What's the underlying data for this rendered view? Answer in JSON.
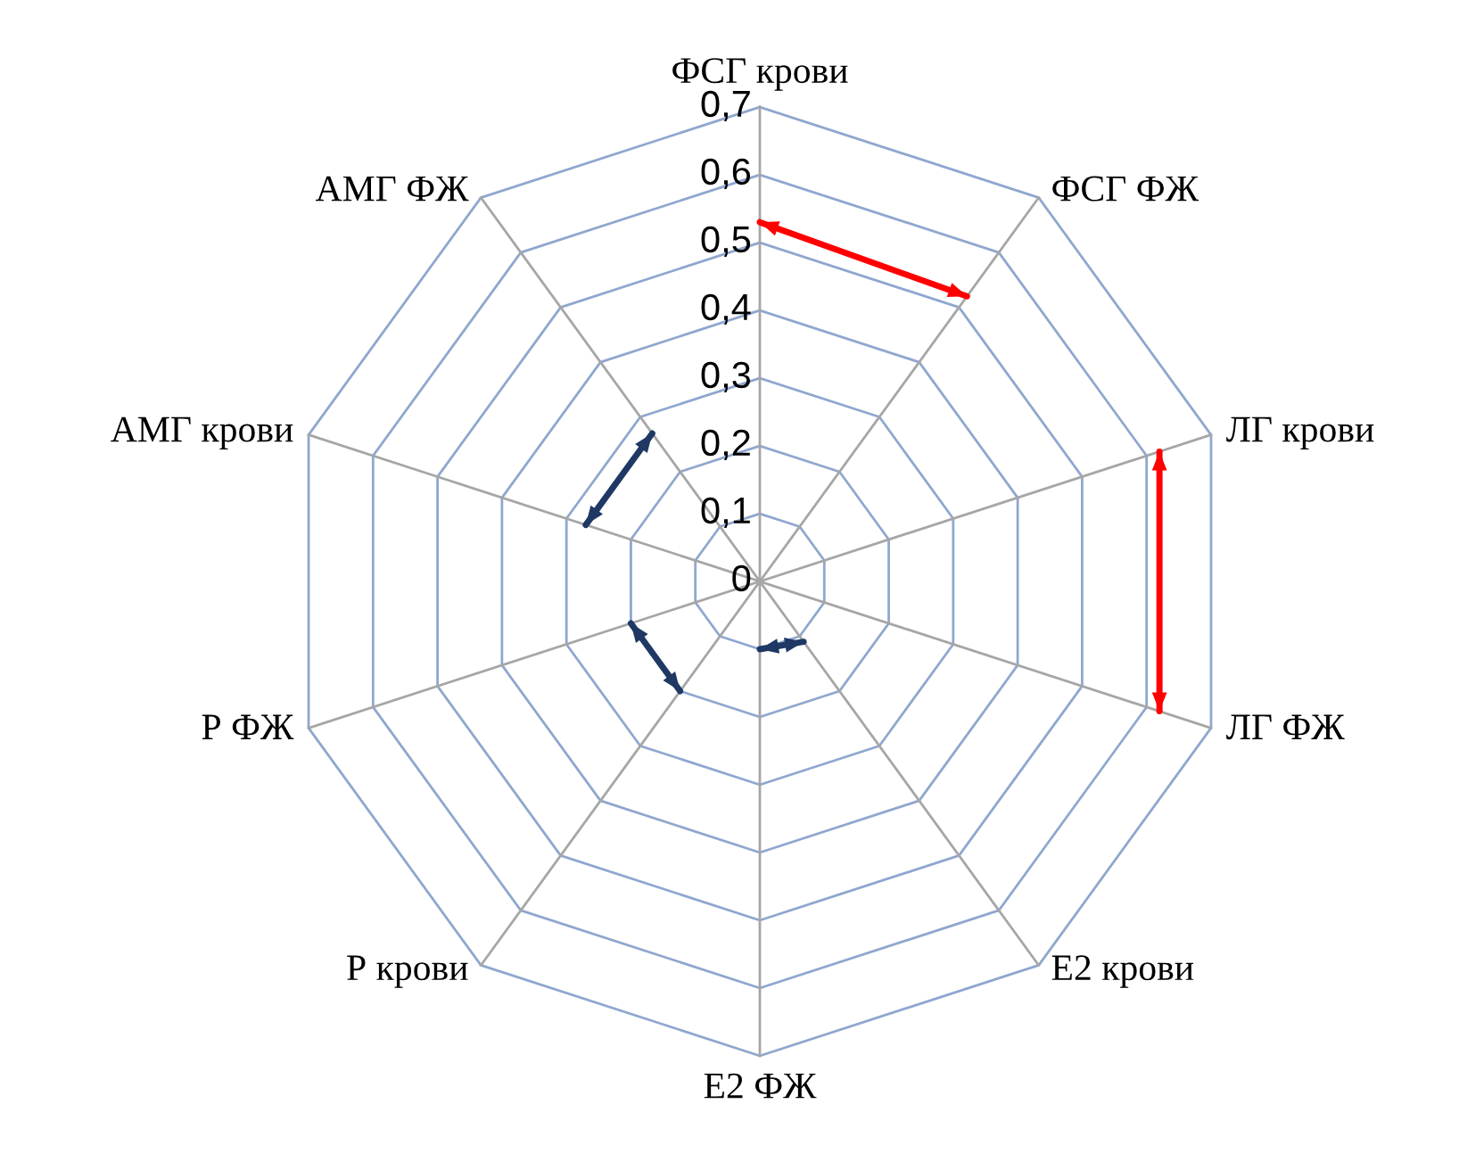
{
  "chart_data": {
    "type": "radar",
    "categories": [
      "ФСГ крови",
      "ФСГ ФЖ",
      "ЛГ крови",
      "ЛГ ФЖ",
      "Е2 крови",
      "Е2 ФЖ",
      "Р крови",
      "Р ФЖ",
      "АМГ крови",
      "АМГ ФЖ"
    ],
    "series": [
      {
        "color": "#ff0000",
        "values": [
          0.53,
          0.52,
          null,
          null,
          null,
          null,
          null,
          null,
          null,
          null
        ]
      },
      {
        "color": "#ff0000",
        "values": [
          null,
          null,
          0.62,
          0.62,
          null,
          null,
          null,
          null,
          null,
          null
        ]
      },
      {
        "color": "#1f3864",
        "values": [
          null,
          null,
          null,
          null,
          0.11,
          0.1,
          null,
          null,
          null,
          null
        ]
      },
      {
        "color": "#1f3864",
        "values": [
          null,
          null,
          null,
          null,
          null,
          null,
          0.2,
          0.2,
          null,
          null
        ]
      },
      {
        "color": "#1f3864",
        "values": [
          null,
          null,
          null,
          null,
          null,
          null,
          null,
          null,
          0.27,
          0.27
        ]
      }
    ],
    "ylim": [
      0,
      0.7
    ],
    "yticks": [
      0,
      {
        "value": 0.1,
        "label": "0,1"
      },
      {
        "value": 0.2,
        "label": "0,2"
      },
      {
        "value": 0.3,
        "label": "0,3"
      },
      {
        "value": 0.4,
        "label": "0,4"
      },
      {
        "value": 0.5,
        "label": "0,5"
      },
      {
        "value": 0.6,
        "label": "0,6"
      },
      {
        "value": 0.7,
        "label": "0,7"
      }
    ],
    "grid": true,
    "marker": "none",
    "line_style": "solid"
  }
}
